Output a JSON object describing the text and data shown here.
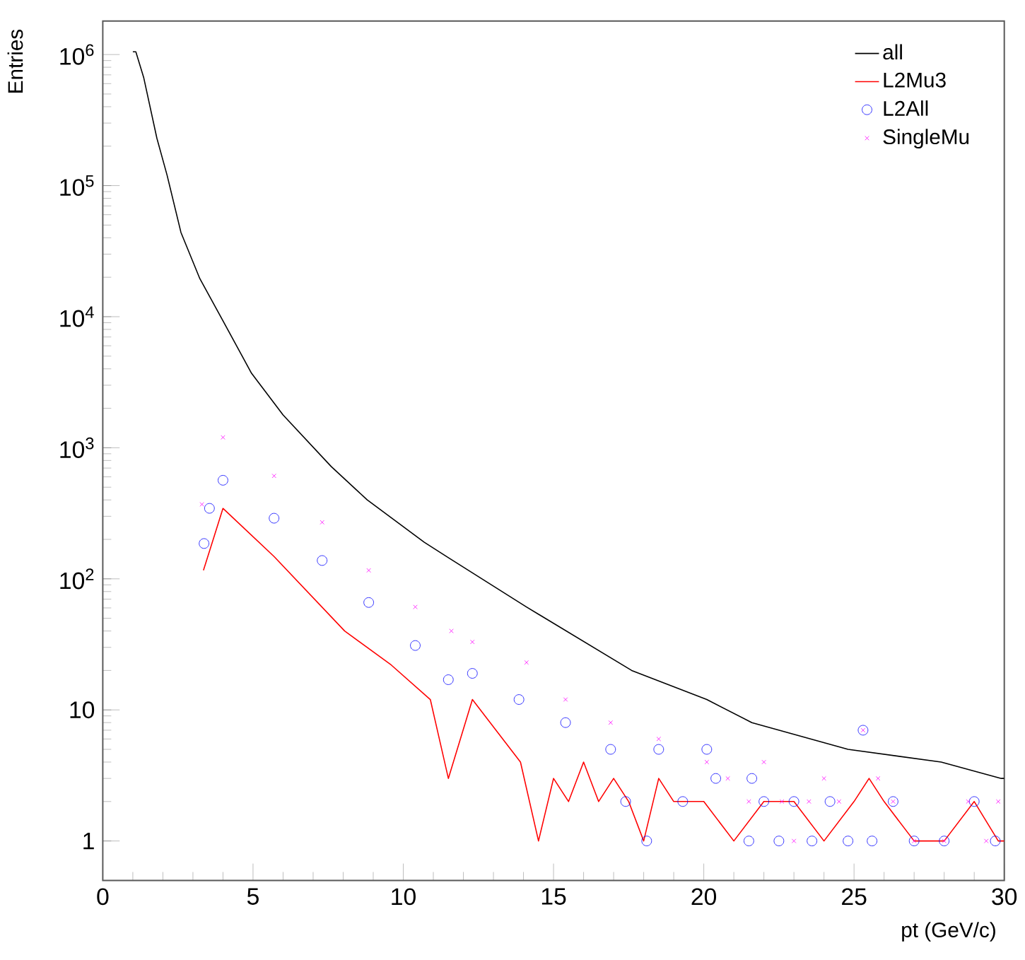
{
  "chart_data": {
    "type": "line",
    "xlabel": "pt (GeV/c)",
    "ylabel": "Entries",
    "xlim": [
      0,
      30
    ],
    "ylim": [
      0.5,
      1800000
    ],
    "log": "y",
    "grid": false,
    "legend": "top right",
    "xticks": [
      0,
      5,
      10,
      15,
      20,
      25,
      30
    ],
    "yticks": [
      1,
      10,
      {
        "value": 100,
        "label": "10$^{2}$"
      },
      {
        "value": 1000,
        "label": "10$^{3}$"
      },
      {
        "value": 10000,
        "label": "10$^{4}$"
      },
      {
        "value": 100000,
        "label": "10$^{5}$"
      },
      {
        "value": 1000000,
        "label": "10$^{6}$"
      }
    ],
    "series": [
      {
        "name": "all",
        "color": "#000000",
        "x": [
          1.0,
          1.1,
          1.36,
          1.8,
          2.14,
          2.6,
          3.23,
          4.0,
          4.95,
          6.0,
          7.6,
          8.8,
          10.7,
          11.5,
          14.1,
          17.6,
          20.1,
          21.6,
          24.8,
          27.9,
          29.9,
          30.0
        ],
        "values": [
          1050000,
          1050000,
          670000,
          230000,
          120000,
          44000,
          19500,
          9300,
          3700,
          1780,
          720,
          400,
          190,
          145,
          61,
          20,
          12,
          8,
          5,
          4,
          3,
          3
        ]
      },
      {
        "name": "L2Mu3",
        "color": "#ff0000",
        "x": [
          3.35,
          4.0,
          5.7,
          8.05,
          9.6,
          10.9,
          11.5,
          12.3,
          13.9,
          14.5,
          15.0,
          15.5,
          16.0,
          16.5,
          17.0,
          17.5,
          18.0,
          18.5,
          19.0,
          19.5,
          20.0,
          21.0,
          22.0,
          23.0,
          24.0,
          25.0,
          25.5,
          26.0,
          27.0,
          28.0,
          29.0,
          29.8,
          30.0
        ],
        "values": [
          116,
          345,
          148,
          40,
          22,
          12,
          3,
          12,
          4,
          1,
          3,
          2,
          4,
          2,
          3,
          2,
          1,
          3,
          2,
          2,
          2,
          1,
          2,
          2,
          1,
          2,
          3,
          2,
          1,
          1,
          2,
          1,
          1
        ]
      },
      {
        "name": "L2All",
        "type": "scatter",
        "marker": "circle",
        "color": "#0000ff",
        "x": [
          3.37,
          3.55,
          4.0,
          5.7,
          7.3,
          8.85,
          10.4,
          11.5,
          12.3,
          13.85,
          15.4,
          16.9,
          17.4,
          18.1,
          18.5,
          19.3,
          20.1,
          20.4,
          21.5,
          21.6,
          22.0,
          22.5,
          23.0,
          23.6,
          24.2,
          24.8,
          25.3,
          25.6,
          26.3,
          27.0,
          28.0,
          29.0,
          29.7
        ],
        "values": [
          186,
          345,
          565,
          290,
          138,
          66,
          31,
          17,
          19,
          12,
          8,
          5,
          2,
          1,
          5,
          2,
          5,
          3,
          1,
          3,
          2,
          1,
          2,
          1,
          2,
          1,
          7,
          1,
          2,
          1,
          1,
          2,
          1
        ]
      },
      {
        "name": "SingleMu",
        "type": "scatter",
        "marker": "cross",
        "color": "#ff00ff",
        "x": [
          3.3,
          4.0,
          5.7,
          7.3,
          8.85,
          10.4,
          11.6,
          12.3,
          14.1,
          15.4,
          16.9,
          18.5,
          20.1,
          20.8,
          21.5,
          22.0,
          22.6,
          23.0,
          23.5,
          24.0,
          24.5,
          25.3,
          25.8,
          26.3,
          27.0,
          28.0,
          28.8,
          29.4,
          29.8
        ],
        "values": [
          370,
          1200,
          610,
          270,
          116,
          61,
          40,
          33,
          23,
          12,
          8,
          6,
          4,
          3,
          2,
          4,
          2,
          1,
          2,
          3,
          2,
          7,
          3,
          2,
          1,
          1,
          2,
          1,
          2
        ]
      }
    ]
  }
}
